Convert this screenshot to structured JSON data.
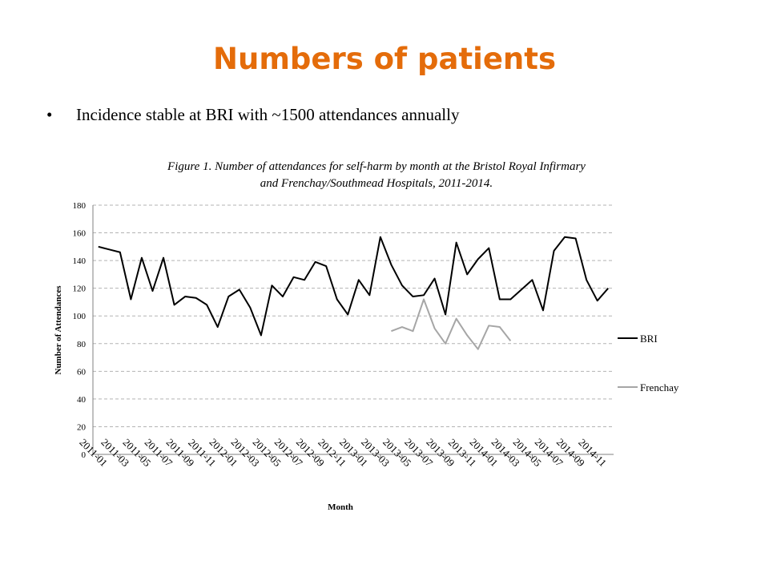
{
  "slide": {
    "title": "Numbers of patients",
    "bullet_symbol": "•",
    "bullet": "Incidence stable at BRI with ~1500 attendances annually",
    "caption_line1": "Figure 1. Number of attendances for self-harm by month at the Bristol Royal Infirmary",
    "caption_line2": "and Frenchay/Southmead Hospitals, 2011-2014."
  },
  "chart_data": {
    "type": "line",
    "xlabel": "Month",
    "ylabel": "Number of Attendances",
    "ylim": [
      0,
      180
    ],
    "yticks": [
      0,
      20,
      40,
      60,
      80,
      100,
      120,
      140,
      160,
      180
    ],
    "grid": "horizontal dashed",
    "legend_position": "right",
    "categories": [
      "2011-01",
      "2011-02",
      "2011-03",
      "2011-04",
      "2011-05",
      "2011-06",
      "2011-07",
      "2011-08",
      "2011-09",
      "2011-10",
      "2011-11",
      "2011-12",
      "2012-01",
      "2012-02",
      "2012-03",
      "2012-04",
      "2012-05",
      "2012-06",
      "2012-07",
      "2012-08",
      "2012-09",
      "2012-10",
      "2012-11",
      "2012-12",
      "2013-01",
      "2013-02",
      "2013-03",
      "2013-04",
      "2013-05",
      "2013-06",
      "2013-07",
      "2013-08",
      "2013-09",
      "2013-10",
      "2013-11",
      "2013-12",
      "2014-01",
      "2014-02",
      "2014-03",
      "2014-04",
      "2014-05",
      "2014-06",
      "2014-07",
      "2014-08",
      "2014-09",
      "2014-10",
      "2014-11",
      "2014-12"
    ],
    "tick_labels": [
      "2011-01",
      "2011-03",
      "2011-05",
      "2011-07",
      "2011-09",
      "2011-11",
      "2012-01",
      "2012-03",
      "2012-05",
      "2012-07",
      "2012-09",
      "2012-11",
      "2013-01",
      "2013-03",
      "2013-05",
      "2013-07",
      "2013-09",
      "2013-11",
      "2014-01",
      "2014-03",
      "2014-05",
      "2014-07",
      "2014-09",
      "2014-11"
    ],
    "series": [
      {
        "name": "BRI",
        "color": "#000000",
        "values": [
          150,
          148,
          146,
          112,
          142,
          118,
          142,
          108,
          114,
          113,
          108,
          92,
          114,
          119,
          106,
          86,
          122,
          114,
          128,
          126,
          139,
          136,
          112,
          101,
          126,
          115,
          157,
          137,
          122,
          114,
          115,
          127,
          101,
          153,
          130,
          141,
          149,
          112,
          112,
          119,
          126,
          104,
          147,
          157,
          156,
          126,
          111,
          120
        ]
      },
      {
        "name": "Frenchay",
        "color": "#a6a6a6",
        "values": [
          null,
          null,
          null,
          null,
          null,
          null,
          null,
          null,
          null,
          null,
          null,
          null,
          null,
          null,
          null,
          null,
          null,
          null,
          null,
          null,
          null,
          null,
          null,
          null,
          null,
          null,
          null,
          89,
          92,
          89,
          112,
          91,
          80,
          98,
          86,
          76,
          93,
          92,
          82,
          null,
          null,
          null,
          null,
          null,
          null,
          null,
          null,
          null
        ]
      }
    ]
  }
}
